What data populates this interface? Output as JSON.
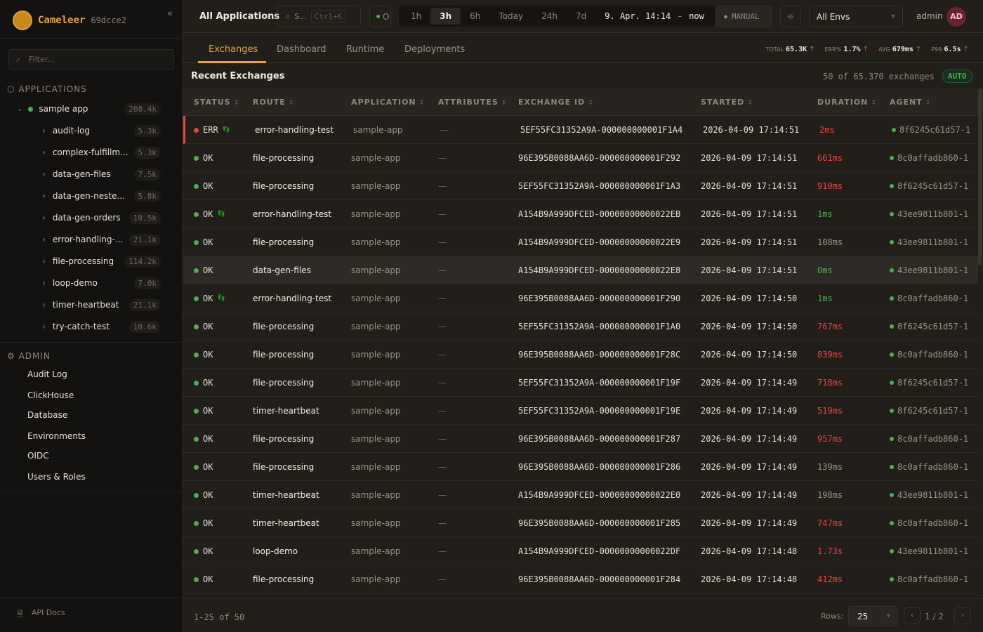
{
  "brand": {
    "name": "Cameleer",
    "version": "69dcce2"
  },
  "sidebar": {
    "filter_placeholder": "Filter...",
    "applications_label": "APPLICATIONS",
    "app": {
      "name": "sample app",
      "count": "208.4k"
    },
    "routes": [
      {
        "name": "audit-log",
        "count": "5.3k"
      },
      {
        "name": "complex-fulfillm...",
        "count": "5.3k"
      },
      {
        "name": "data-gen-files",
        "count": "7.5k"
      },
      {
        "name": "data-gen-neste...",
        "count": "5.8k"
      },
      {
        "name": "data-gen-orders",
        "count": "10.5k"
      },
      {
        "name": "error-handling-...",
        "count": "21.1k"
      },
      {
        "name": "file-processing",
        "count": "114.2k"
      },
      {
        "name": "loop-demo",
        "count": "7.0k"
      },
      {
        "name": "timer-heartbeat",
        "count": "21.1k"
      },
      {
        "name": "try-catch-test",
        "count": "10.6k"
      }
    ],
    "admin_label": "ADMIN",
    "admin_items": [
      "Audit Log",
      "ClickHouse",
      "Database",
      "Environments",
      "OIDC",
      "Users & Roles"
    ],
    "api_docs": "API Docs"
  },
  "topbar": {
    "title": "All Applications",
    "search_label": "S...",
    "search_shortcut": "Ctrl+K",
    "status_label": "O",
    "time_ranges": [
      "1h",
      "3h",
      "6h",
      "Today",
      "24h",
      "7d"
    ],
    "active_range": "3h",
    "range_from": "9. Apr. 14:14",
    "range_sep": "–",
    "range_to": "now",
    "manual_label": "MANUAL",
    "env_select": "All Envs",
    "user": "admin",
    "avatar": "AD"
  },
  "tabs": [
    "Exchanges",
    "Dashboard",
    "Runtime",
    "Deployments"
  ],
  "active_tab": "Exchanges",
  "kpis": [
    {
      "label": "TOTAL",
      "value": "65.3K",
      "trend": "up",
      "color": "#4caf50"
    },
    {
      "label": "ERR%",
      "value": "1.7%",
      "trend": "up",
      "color": "#e5483b"
    },
    {
      "label": "AVG",
      "value": "679ms",
      "trend": "up",
      "color": "#e5483b"
    },
    {
      "label": "P99",
      "value": "6.5s",
      "trend": "up",
      "color": "#e5483b"
    }
  ],
  "exchanges": {
    "title": "Recent Exchanges",
    "count_text": "50 of 65.370 exchanges",
    "auto_label": "AUTO",
    "columns": [
      "STATUS",
      "ROUTE",
      "APPLICATION",
      "ATTRIBUTES",
      "EXCHANGE ID",
      "STARTED",
      "DURATION",
      "AGENT"
    ],
    "rows": [
      {
        "status": "ERR",
        "trace": true,
        "route": "error-handling-test",
        "app": "sample-app",
        "attrs": "—",
        "id": "5EF55FC31352A9A-000000000001F1A4",
        "started": "2026-04-09 17:14:51",
        "duration": "2ms",
        "level": "red",
        "agent": "8f6245c61d57-1"
      },
      {
        "status": "OK",
        "trace": false,
        "route": "file-processing",
        "app": "sample-app",
        "attrs": "—",
        "id": "96E395B0088AA6D-000000000001F292",
        "started": "2026-04-09 17:14:51",
        "duration": "661ms",
        "level": "red",
        "agent": "8c0affadb860-1"
      },
      {
        "status": "OK",
        "trace": false,
        "route": "file-processing",
        "app": "sample-app",
        "attrs": "—",
        "id": "5EF55FC31352A9A-000000000001F1A3",
        "started": "2026-04-09 17:14:51",
        "duration": "910ms",
        "level": "red",
        "agent": "8f6245c61d57-1"
      },
      {
        "status": "OK",
        "trace": true,
        "route": "error-handling-test",
        "app": "sample-app",
        "attrs": "—",
        "id": "A154B9A999DFCED-00000000000022EB",
        "started": "2026-04-09 17:14:51",
        "duration": "1ms",
        "level": "green",
        "agent": "43ee9811b801-1"
      },
      {
        "status": "OK",
        "trace": false,
        "route": "file-processing",
        "app": "sample-app",
        "attrs": "—",
        "id": "A154B9A999DFCED-00000000000022E9",
        "started": "2026-04-09 17:14:51",
        "duration": "108ms",
        "level": "grey",
        "agent": "43ee9811b801-1"
      },
      {
        "status": "OK",
        "trace": false,
        "route": "data-gen-files",
        "app": "sample-app",
        "attrs": "—",
        "id": "A154B9A999DFCED-00000000000022E8",
        "started": "2026-04-09 17:14:51",
        "duration": "0ms",
        "level": "green",
        "agent": "43ee9811b801-1",
        "highlight": true
      },
      {
        "status": "OK",
        "trace": true,
        "route": "error-handling-test",
        "app": "sample-app",
        "attrs": "—",
        "id": "96E395B0088AA6D-000000000001F290",
        "started": "2026-04-09 17:14:50",
        "duration": "1ms",
        "level": "green",
        "agent": "8c0affadb860-1"
      },
      {
        "status": "OK",
        "trace": false,
        "route": "file-processing",
        "app": "sample-app",
        "attrs": "—",
        "id": "5EF55FC31352A9A-000000000001F1A0",
        "started": "2026-04-09 17:14:50",
        "duration": "767ms",
        "level": "red",
        "agent": "8f6245c61d57-1"
      },
      {
        "status": "OK",
        "trace": false,
        "route": "file-processing",
        "app": "sample-app",
        "attrs": "—",
        "id": "96E395B0088AA6D-000000000001F28C",
        "started": "2026-04-09 17:14:50",
        "duration": "839ms",
        "level": "red",
        "agent": "8c0affadb860-1"
      },
      {
        "status": "OK",
        "trace": false,
        "route": "file-processing",
        "app": "sample-app",
        "attrs": "—",
        "id": "5EF55FC31352A9A-000000000001F19F",
        "started": "2026-04-09 17:14:49",
        "duration": "718ms",
        "level": "red",
        "agent": "8f6245c61d57-1"
      },
      {
        "status": "OK",
        "trace": false,
        "route": "timer-heartbeat",
        "app": "sample-app",
        "attrs": "—",
        "id": "5EF55FC31352A9A-000000000001F19E",
        "started": "2026-04-09 17:14:49",
        "duration": "519ms",
        "level": "red",
        "agent": "8f6245c61d57-1"
      },
      {
        "status": "OK",
        "trace": false,
        "route": "file-processing",
        "app": "sample-app",
        "attrs": "—",
        "id": "96E395B0088AA6D-000000000001F287",
        "started": "2026-04-09 17:14:49",
        "duration": "957ms",
        "level": "red",
        "agent": "8c0affadb860-1"
      },
      {
        "status": "OK",
        "trace": false,
        "route": "file-processing",
        "app": "sample-app",
        "attrs": "—",
        "id": "96E395B0088AA6D-000000000001F286",
        "started": "2026-04-09 17:14:49",
        "duration": "139ms",
        "level": "grey",
        "agent": "8c0affadb860-1"
      },
      {
        "status": "OK",
        "trace": false,
        "route": "timer-heartbeat",
        "app": "sample-app",
        "attrs": "—",
        "id": "A154B9A999DFCED-00000000000022E0",
        "started": "2026-04-09 17:14:49",
        "duration": "198ms",
        "level": "grey",
        "agent": "43ee9811b801-1"
      },
      {
        "status": "OK",
        "trace": false,
        "route": "timer-heartbeat",
        "app": "sample-app",
        "attrs": "—",
        "id": "96E395B0088AA6D-000000000001F285",
        "started": "2026-04-09 17:14:49",
        "duration": "747ms",
        "level": "red",
        "agent": "8c0affadb860-1"
      },
      {
        "status": "OK",
        "trace": false,
        "route": "loop-demo",
        "app": "sample-app",
        "attrs": "—",
        "id": "A154B9A999DFCED-00000000000022DF",
        "started": "2026-04-09 17:14:48",
        "duration": "1.73s",
        "level": "red",
        "agent": "43ee9811b801-1"
      },
      {
        "status": "OK",
        "trace": false,
        "route": "file-processing",
        "app": "sample-app",
        "attrs": "—",
        "id": "96E395B0088AA6D-000000000001F284",
        "started": "2026-04-09 17:14:48",
        "duration": "412ms",
        "level": "red",
        "agent": "8c0affadb860-1"
      }
    ]
  },
  "pagination": {
    "range": "1-25 of 50",
    "rows_label": "Rows:",
    "rows_value": "25",
    "page": "1",
    "sep": "/",
    "total": "2"
  },
  "colors": {
    "accent": "#e8a33d",
    "ok": "#4caf50",
    "error": "#e5483b"
  }
}
